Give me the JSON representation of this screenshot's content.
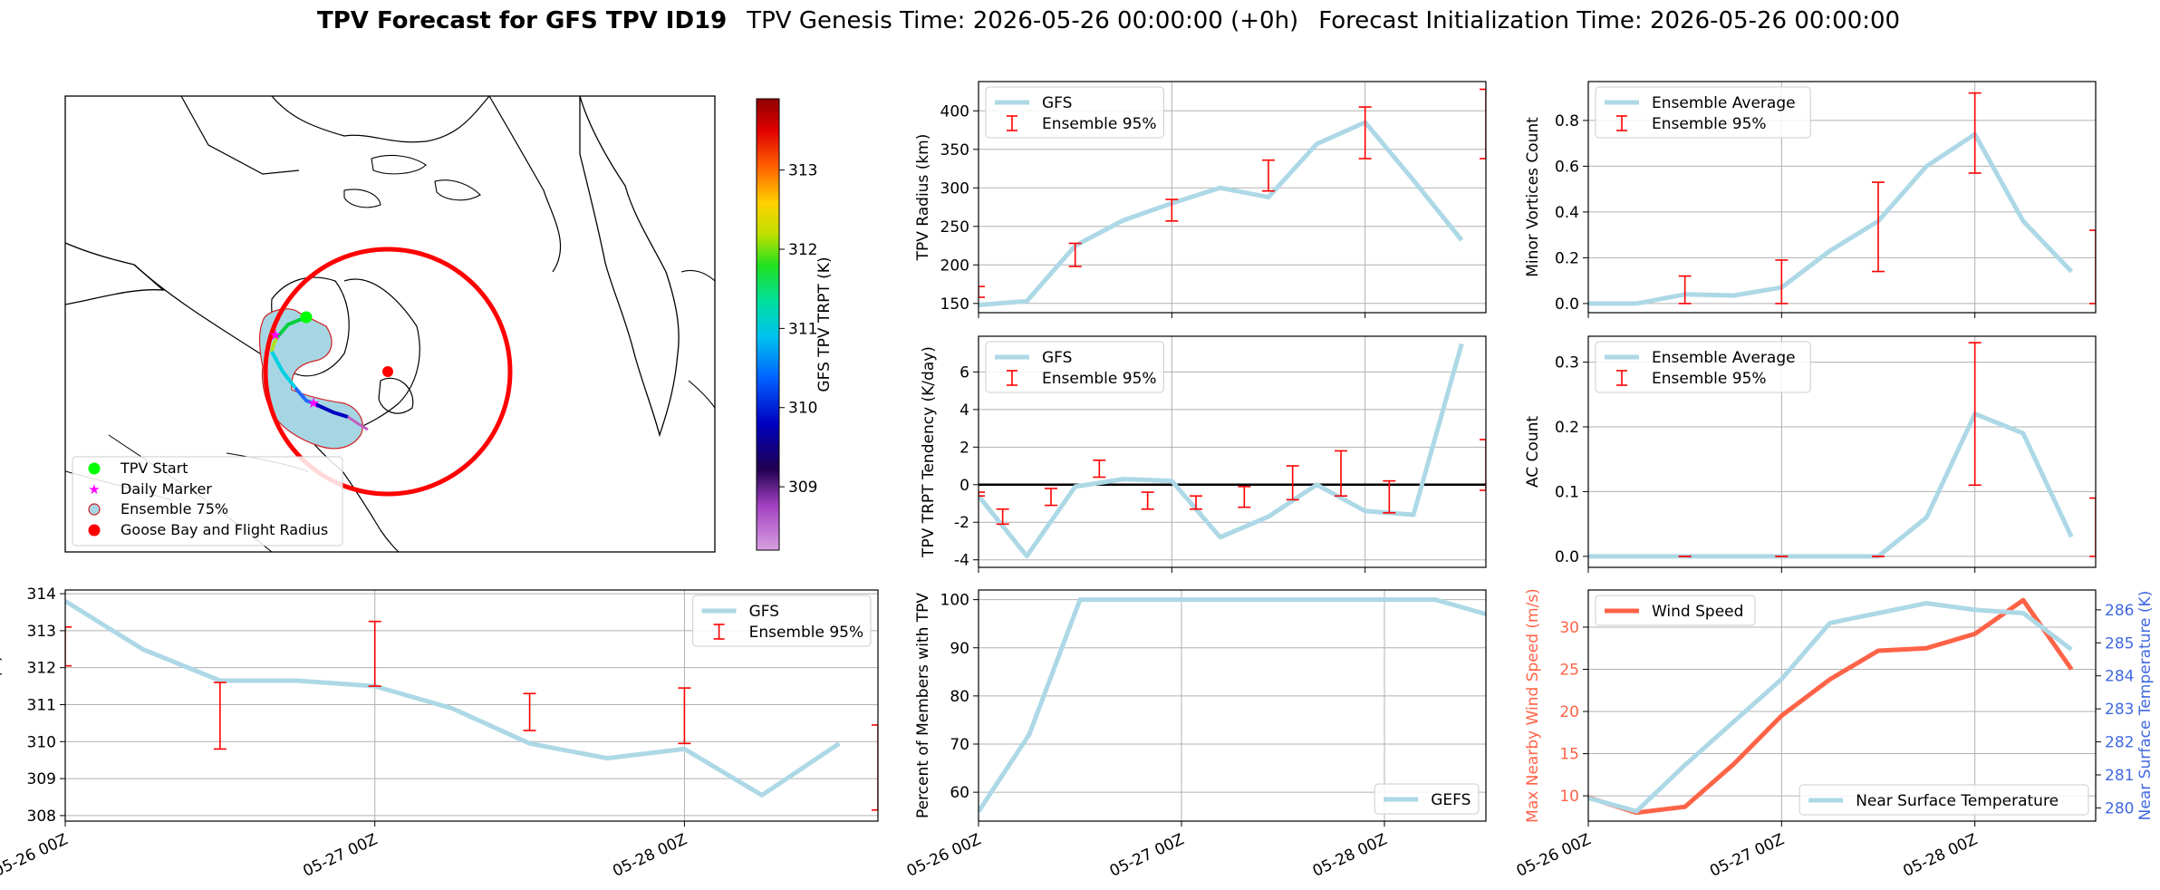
{
  "title": {
    "main": "TPV Forecast for GFS TPV ID19",
    "genesis": "TPV Genesis Time: 2026-05-26 00:00:00 (+0h)",
    "init": "Forecast Initialization Time: 2026-05-26 00:00:00"
  },
  "map": {
    "colorbar_label": "GFS TPV TRPT (K)",
    "colorbar_ticks": [
      309,
      310,
      311,
      312,
      313
    ],
    "colorbar_range": [
      308.2,
      313.9
    ],
    "legend": [
      "TPV Start",
      "Daily Marker",
      "Ensemble 75%",
      "Goose Bay and Flight Radius"
    ]
  },
  "chart_data": [
    {
      "id": "radius",
      "type": "line",
      "ylabel": "TPV Radius (km)",
      "x": [
        0,
        1,
        2,
        3,
        4,
        5,
        6,
        7,
        8,
        9,
        10
      ],
      "xlim": [
        0,
        10.5
      ],
      "ylim": [
        138,
        438
      ],
      "yticks": [
        150,
        200,
        250,
        300,
        350,
        400
      ],
      "series": [
        {
          "name": "GFS",
          "values": [
            148,
            153,
            225,
            258,
            280,
            300,
            288,
            357,
            385,
            310,
            232
          ]
        }
      ],
      "errorbars": {
        "name": "Ensemble 95%",
        "bars": [
          [
            0,
            158,
            172
          ],
          [
            2,
            198,
            228
          ],
          [
            4,
            257,
            285
          ],
          [
            6,
            296,
            336
          ],
          [
            8,
            338,
            405
          ],
          [
            10.5,
            338,
            428
          ]
        ]
      },
      "legend": [
        "GFS",
        "Ensemble 95%"
      ],
      "grid": true
    },
    {
      "id": "minor",
      "type": "line",
      "ylabel": "Minor Vortices Count",
      "x": [
        0,
        1,
        2,
        3,
        4,
        5,
        6,
        7,
        8,
        9,
        10
      ],
      "xlim": [
        0,
        10.5
      ],
      "ylim": [
        -0.04,
        0.97
      ],
      "yticks": [
        0.0,
        0.2,
        0.4,
        0.6,
        0.8
      ],
      "series": [
        {
          "name": "Ensemble Average",
          "values": [
            0.0,
            0.0,
            0.04,
            0.035,
            0.07,
            0.23,
            0.36,
            0.6,
            0.74,
            0.36,
            0.14
          ]
        }
      ],
      "errorbars": {
        "name": "Ensemble 95%",
        "bars": [
          [
            2,
            0.0,
            0.12
          ],
          [
            4,
            0.0,
            0.19
          ],
          [
            6,
            0.14,
            0.53
          ],
          [
            8,
            0.57,
            0.92
          ],
          [
            10.5,
            0.0,
            0.32
          ]
        ]
      },
      "legend": [
        "Ensemble Average",
        "Ensemble 95%"
      ],
      "grid": true
    },
    {
      "id": "tendency",
      "type": "line",
      "ylabel": "TPV TRPT Tendency (K/day)",
      "x": [
        0,
        1,
        2,
        3,
        4,
        5,
        6,
        7,
        8,
        9,
        10
      ],
      "xlim": [
        0,
        10.5
      ],
      "ylim": [
        -4.4,
        7.9
      ],
      "yticks": [
        -4,
        -2,
        0,
        2,
        4,
        6
      ],
      "series": [
        {
          "name": "GFS",
          "values": [
            -0.6,
            -3.8,
            -0.1,
            0.3,
            0.2,
            -2.8,
            -1.7,
            0.0,
            -1.4,
            -1.6,
            7.5
          ]
        }
      ],
      "errorbars": {
        "name": "Ensemble 95%",
        "bars": [
          [
            0,
            -0.6,
            -0.4
          ],
          [
            0.5,
            -2.1,
            -1.3
          ],
          [
            1.5,
            -1.1,
            -0.2
          ],
          [
            2.5,
            0.4,
            1.3
          ],
          [
            3.5,
            -1.3,
            -0.4
          ],
          [
            4.5,
            -1.3,
            -0.6
          ],
          [
            5.5,
            -1.2,
            -0.1
          ],
          [
            6.5,
            -0.8,
            1.0
          ],
          [
            7.5,
            -0.6,
            1.8
          ],
          [
            8.5,
            -1.5,
            0.2
          ],
          [
            10.5,
            -0.3,
            2.4
          ]
        ]
      },
      "zero_line": true,
      "legend": [
        "GFS",
        "Ensemble 95%"
      ],
      "grid": true
    },
    {
      "id": "ac",
      "type": "line",
      "ylabel": "AC Count",
      "x": [
        0,
        1,
        2,
        3,
        4,
        5,
        6,
        7,
        8,
        9,
        10
      ],
      "xlim": [
        0,
        10.5
      ],
      "ylim": [
        -0.017,
        0.34
      ],
      "yticks": [
        0.0,
        0.1,
        0.2,
        0.3
      ],
      "series": [
        {
          "name": "Ensemble Average",
          "values": [
            0,
            0,
            0,
            0,
            0,
            0,
            0,
            0.06,
            0.22,
            0.19,
            0.03
          ]
        }
      ],
      "errorbars": {
        "name": "Ensemble 95%",
        "bars": [
          [
            2,
            0,
            0
          ],
          [
            4,
            0,
            0
          ],
          [
            6,
            0,
            0
          ],
          [
            8,
            0.11,
            0.33
          ],
          [
            10.5,
            0,
            0.09
          ]
        ]
      },
      "legend": [
        "Ensemble Average",
        "Ensemble 95%"
      ],
      "grid": true
    },
    {
      "id": "trpt",
      "type": "line",
      "ylabel": "TPV TRPT (K)",
      "x": [
        0,
        1,
        2,
        3,
        4,
        5,
        6,
        7,
        8,
        9,
        10
      ],
      "xlim": [
        0,
        10.5
      ],
      "ylim": [
        307.85,
        314.1
      ],
      "yticks": [
        308,
        309,
        310,
        311,
        312,
        313,
        314
      ],
      "xticks": [
        0,
        4,
        8
      ],
      "xticklabels": [
        "05-26 00Z",
        "05-27 00Z",
        "05-28 00Z"
      ],
      "series": [
        {
          "name": "GFS",
          "values": [
            313.8,
            312.5,
            311.65,
            311.65,
            311.5,
            310.9,
            309.95,
            309.55,
            309.8,
            308.55,
            309.95
          ]
        }
      ],
      "errorbars": {
        "name": "Ensemble 95%",
        "bars": [
          [
            0,
            312.05,
            313.1
          ],
          [
            2,
            309.8,
            311.6
          ],
          [
            4,
            311.5,
            313.25
          ],
          [
            6,
            310.3,
            311.3
          ],
          [
            8,
            309.95,
            311.45
          ],
          [
            10.5,
            308.15,
            310.45
          ]
        ]
      },
      "legend": [
        "GFS",
        "Ensemble 95%"
      ],
      "grid": true
    },
    {
      "id": "members",
      "type": "line",
      "ylabel": "Percent of Members with TPV",
      "x": [
        0,
        1,
        2,
        3,
        4,
        5,
        6,
        7,
        8,
        9,
        10
      ],
      "xlim": [
        0,
        10
      ],
      "ylim": [
        54,
        102
      ],
      "yticks": [
        60,
        70,
        80,
        90,
        100
      ],
      "xticks": [
        0,
        4,
        8
      ],
      "xticklabels": [
        "05-26 00Z",
        "05-27 00Z",
        "05-28 00Z"
      ],
      "series": [
        {
          "name": "GEFS",
          "values": [
            56,
            72,
            100,
            100,
            100,
            100,
            100,
            100,
            100,
            100,
            97
          ]
        }
      ],
      "legend": [
        "GEFS"
      ],
      "grid": true
    },
    {
      "id": "wind",
      "type": "line",
      "ylabel": "Max Nearby Wind Speed (m/s)",
      "ylabel_right": "Near Surface Temperature (K)",
      "x": [
        0,
        1,
        2,
        3,
        4,
        5,
        6,
        7,
        8,
        9,
        10
      ],
      "xlim": [
        0,
        10.5
      ],
      "ylim": [
        7.0,
        34.4
      ],
      "yticks": [
        10,
        15,
        20,
        25,
        30
      ],
      "ylim_right": [
        279.6,
        286.6
      ],
      "yticks_right": [
        280,
        281,
        282,
        283,
        284,
        285,
        286
      ],
      "xticks": [
        0,
        4,
        8
      ],
      "xticklabels": [
        "05-26 00Z",
        "05-27 00Z",
        "05-28 00Z"
      ],
      "series": [
        {
          "name": "Wind Speed",
          "axis": "left",
          "values": [
            9.8,
            8.0,
            8.7,
            13.7,
            19.5,
            23.8,
            27.2,
            27.5,
            29.2,
            33.2,
            25.0
          ]
        },
        {
          "name": "Near Surface Temperature",
          "axis": "right",
          "values": [
            280.3,
            279.9,
            281.3,
            282.6,
            283.9,
            285.6,
            285.9,
            286.2,
            286.0,
            285.9,
            284.8
          ]
        }
      ],
      "legend": [
        "Wind Speed",
        "Near Surface Temperature"
      ],
      "grid": true
    }
  ],
  "colors": {
    "line": "#add8e6",
    "errorbar": "#ff0000",
    "wind": "#ff6347",
    "temperature_axis": "#4169e1",
    "map_shade": "#a6d6e4",
    "radius": "#ff0000"
  }
}
